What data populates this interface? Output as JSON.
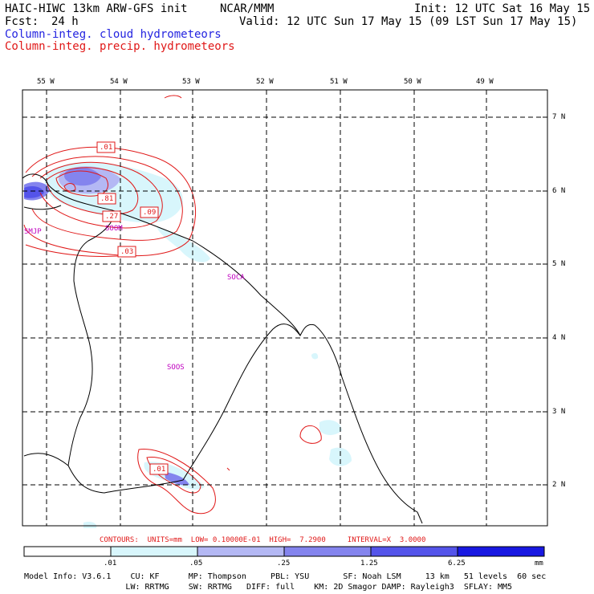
{
  "header": {
    "model": "HAIC-HIWC 13km ARW-GFS init",
    "org": "NCAR/MMM",
    "init": "Init: 12 UTC Sat 16 May 15",
    "fcst_label": "Fcst:",
    "fcst_value": "24 h",
    "valid": "Valid: 12 UTC Sun 17 May 15 (09 LST Sun 17 May 15)",
    "field_cloud": "Column-integ. cloud hydrometeors",
    "field_precip": "Column-integ. precip. hydrometeors"
  },
  "map": {
    "lon_labels": [
      "55 W",
      "54 W",
      "53 W",
      "52 W",
      "51 W",
      "50 W",
      "49 W"
    ],
    "lat_labels": [
      "7 N",
      "6 N",
      "5 N",
      "4 N",
      "3 N",
      "2 N"
    ],
    "stations": [
      "SMJP",
      "SOOM",
      "SOCA",
      "SOOS"
    ],
    "contour_labels": [
      ".01",
      ".81",
      ".27",
      ".09",
      ".03",
      ".01"
    ]
  },
  "contours_line": {
    "text": "CONTOURS:  UNITS=mm  LOW= 0.10000E-01  HIGH=  7.2900     INTERVAL=X  3.0000"
  },
  "colorbar": {
    "ticks": [
      ".01",
      ".05",
      ".25",
      "1.25",
      "6.25"
    ],
    "unit": "mm",
    "colors": [
      "#ffffff",
      "#d8f6fc",
      "#b4b8f4",
      "#8484ee",
      "#5454ea",
      "#1818e2"
    ]
  },
  "footer": {
    "line1": "Model Info: V3.6.1    CU: KF      MP: Thompson     PBL: YSU       SF: Noah LSM     13 km   51 levels  60 sec",
    "line2": "                     LW: RRTMG    SW: RRTMG   DIFF: full    KM: 2D Smagor DAMP: Rayleigh3  SFLAY: MM5"
  },
  "colors": {
    "cloud": "#2424e0",
    "precip": "#e01818",
    "station": "#c000c0"
  }
}
